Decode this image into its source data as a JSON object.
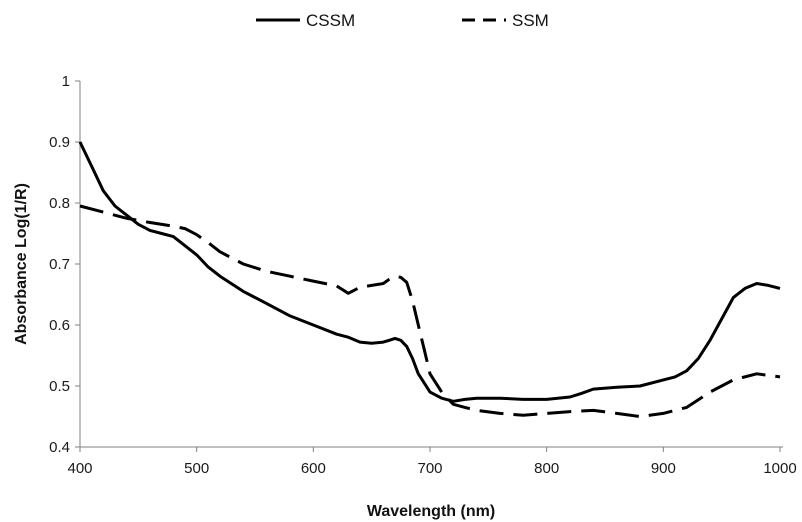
{
  "chart_data": {
    "type": "line",
    "title": "",
    "xlabel": "Wavelength (nm)",
    "ylabel": "Absorbance Log(1/R)",
    "xlim": [
      400,
      1000
    ],
    "ylim": [
      0.4,
      1.0
    ],
    "xticks": [
      "400",
      "500",
      "600",
      "700",
      "800",
      "900",
      "1000"
    ],
    "yticks": [
      "0.4",
      "0.5",
      "0.6",
      "0.7",
      "0.8",
      "0.9",
      "1"
    ],
    "grid": false,
    "legend_position": "top",
    "series": [
      {
        "name": "CSSM",
        "style": "solid",
        "color": "#000000",
        "x": [
          400,
          410,
          420,
          430,
          440,
          450,
          460,
          470,
          480,
          490,
          500,
          510,
          520,
          540,
          560,
          580,
          600,
          620,
          630,
          640,
          650,
          660,
          665,
          670,
          675,
          680,
          685,
          690,
          695,
          700,
          710,
          720,
          730,
          740,
          760,
          780,
          800,
          820,
          830,
          840,
          860,
          880,
          900,
          910,
          920,
          930,
          940,
          950,
          960,
          970,
          980,
          990,
          1000
        ],
        "y": [
          0.9,
          0.86,
          0.82,
          0.795,
          0.78,
          0.765,
          0.755,
          0.75,
          0.745,
          0.73,
          0.715,
          0.695,
          0.68,
          0.655,
          0.635,
          0.615,
          0.6,
          0.585,
          0.58,
          0.572,
          0.57,
          0.572,
          0.575,
          0.578,
          0.575,
          0.565,
          0.545,
          0.52,
          0.505,
          0.49,
          0.48,
          0.475,
          0.478,
          0.48,
          0.48,
          0.478,
          0.478,
          0.482,
          0.488,
          0.495,
          0.498,
          0.5,
          0.51,
          0.515,
          0.525,
          0.545,
          0.575,
          0.61,
          0.645,
          0.66,
          0.668,
          0.665,
          0.66
        ]
      },
      {
        "name": "SSM",
        "style": "dashed",
        "color": "#000000",
        "x": [
          400,
          420,
          440,
          460,
          480,
          490,
          500,
          510,
          520,
          540,
          560,
          580,
          600,
          610,
          620,
          630,
          640,
          650,
          660,
          665,
          670,
          675,
          680,
          685,
          690,
          695,
          700,
          710,
          720,
          730,
          740,
          760,
          780,
          800,
          820,
          840,
          860,
          880,
          900,
          920,
          940,
          960,
          980,
          1000
        ],
        "y": [
          0.795,
          0.785,
          0.775,
          0.768,
          0.762,
          0.758,
          0.748,
          0.735,
          0.72,
          0.7,
          0.688,
          0.68,
          0.672,
          0.668,
          0.664,
          0.652,
          0.662,
          0.665,
          0.668,
          0.675,
          0.68,
          0.678,
          0.67,
          0.64,
          0.6,
          0.56,
          0.52,
          0.49,
          0.47,
          0.465,
          0.46,
          0.455,
          0.452,
          0.455,
          0.458,
          0.46,
          0.455,
          0.45,
          0.455,
          0.465,
          0.49,
          0.51,
          0.52,
          0.515
        ]
      }
    ]
  }
}
